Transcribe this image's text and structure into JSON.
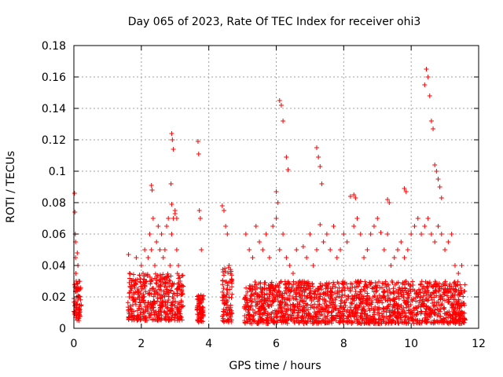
{
  "chart_data": {
    "type": "scatter",
    "title": "Day 065 of 2023, Rate Of TEC Index for receiver ohi3",
    "xlabel": "GPS time / hours",
    "ylabel": "ROTI / TECUs",
    "xlim": [
      0,
      12
    ],
    "ylim": [
      0,
      0.18
    ],
    "xticks": [
      0,
      2,
      4,
      6,
      8,
      10,
      12
    ],
    "yticks": [
      0,
      0.02,
      0.04,
      0.06,
      0.08,
      0.1,
      0.12,
      0.14,
      0.16,
      0.18
    ],
    "xtick_labels": [
      "0",
      "2",
      "4",
      "6",
      "8",
      "10",
      "12"
    ],
    "ytick_labels": [
      "0",
      "0.02",
      "0.04",
      "0.06",
      "0.08",
      "0.1",
      "0.12",
      "0.14",
      "0.16",
      "0.18"
    ],
    "grid": true,
    "marker": "plus",
    "color": "#ff0000",
    "series": [
      {
        "x": [
          0.02,
          0.03,
          0.04,
          0.05,
          0.05,
          0.06,
          0.07,
          0.08,
          0.09,
          0.1,
          0.12,
          0.14,
          0.16,
          0.18,
          0.02,
          0.05,
          0.08,
          0.12,
          0.16,
          1.62,
          1.65,
          1.7,
          1.75,
          1.8,
          1.85,
          1.9,
          1.95,
          2.0,
          2.05,
          2.1,
          2.15,
          2.2,
          2.25,
          2.3,
          2.35,
          2.4,
          2.45,
          2.5,
          2.55,
          2.6,
          2.65,
          2.7,
          2.75,
          2.8,
          2.85,
          2.9,
          2.95,
          3.0,
          3.05,
          3.1,
          3.15,
          2.3,
          2.32,
          2.9,
          2.92,
          2.95,
          3.0,
          3.05,
          2.88,
          2.9,
          3.68,
          3.7,
          3.72,
          3.75,
          3.78,
          3.8,
          3.7,
          3.72,
          3.75,
          4.4,
          4.45,
          4.5,
          4.55,
          4.6,
          4.65,
          4.5,
          4.55,
          4.6,
          5.1,
          5.2,
          5.3,
          5.4,
          5.5,
          5.6,
          5.7,
          5.8,
          5.9,
          6.0,
          6.1,
          6.2,
          6.3,
          6.4,
          6.5,
          6.6,
          6.7,
          6.8,
          6.9,
          7.0,
          7.1,
          7.2,
          7.3,
          7.4,
          7.5,
          7.6,
          7.7,
          7.8,
          7.9,
          8.0,
          8.1,
          8.2,
          8.3,
          8.4,
          8.5,
          8.6,
          8.7,
          8.8,
          8.9,
          9.0,
          9.1,
          9.2,
          9.3,
          9.4,
          9.5,
          9.6,
          9.7,
          9.8,
          9.9,
          10.0,
          10.1,
          10.2,
          10.3,
          10.4,
          10.5,
          10.6,
          10.7,
          10.8,
          10.9,
          11.0,
          11.1,
          11.2,
          11.3,
          11.4,
          11.5,
          6.0,
          6.05,
          6.1,
          6.15,
          6.2,
          6.3,
          6.35,
          7.2,
          7.25,
          7.3,
          7.35,
          8.3,
          8.35,
          9.3,
          9.35,
          9.8,
          9.85,
          10.4,
          10.45,
          10.5,
          10.55,
          10.6,
          10.65,
          10.7,
          10.75,
          10.8,
          10.85,
          10.9
        ],
        "y": [
          0.086,
          0.074,
          0.06,
          0.055,
          0.045,
          0.035,
          0.03,
          0.025,
          0.02,
          0.048,
          0.04,
          0.03,
          0.02,
          0.012,
          0.01,
          0.015,
          0.008,
          0.018,
          0.01,
          0.047,
          0.035,
          0.02,
          0.015,
          0.03,
          0.045,
          0.025,
          0.02,
          0.04,
          0.035,
          0.05,
          0.03,
          0.045,
          0.06,
          0.05,
          0.07,
          0.04,
          0.055,
          0.065,
          0.05,
          0.06,
          0.045,
          0.05,
          0.065,
          0.07,
          0.04,
          0.06,
          0.07,
          0.075,
          0.05,
          0.04,
          0.03,
          0.091,
          0.088,
          0.124,
          0.12,
          0.114,
          0.073,
          0.07,
          0.092,
          0.079,
          0.119,
          0.111,
          0.075,
          0.07,
          0.05,
          0.02,
          0.015,
          0.01,
          0.005,
          0.078,
          0.075,
          0.065,
          0.06,
          0.04,
          0.035,
          0.02,
          0.01,
          0.005,
          0.06,
          0.05,
          0.045,
          0.065,
          0.055,
          0.05,
          0.06,
          0.045,
          0.065,
          0.07,
          0.05,
          0.06,
          0.045,
          0.04,
          0.035,
          0.05,
          0.03,
          0.052,
          0.045,
          0.06,
          0.04,
          0.05,
          0.066,
          0.055,
          0.06,
          0.05,
          0.065,
          0.045,
          0.05,
          0.06,
          0.055,
          0.084,
          0.065,
          0.07,
          0.06,
          0.045,
          0.05,
          0.06,
          0.065,
          0.07,
          0.061,
          0.05,
          0.06,
          0.04,
          0.045,
          0.05,
          0.055,
          0.045,
          0.05,
          0.06,
          0.065,
          0.07,
          0.06,
          0.065,
          0.07,
          0.06,
          0.055,
          0.065,
          0.06,
          0.05,
          0.055,
          0.06,
          0.04,
          0.035,
          0.04,
          0.087,
          0.08,
          0.145,
          0.142,
          0.132,
          0.109,
          0.101,
          0.115,
          0.109,
          0.103,
          0.092,
          0.085,
          0.083,
          0.082,
          0.08,
          0.089,
          0.087,
          0.155,
          0.165,
          0.16,
          0.148,
          0.132,
          0.127,
          0.104,
          0.1,
          0.095,
          0.09,
          0.083
        ]
      }
    ],
    "dense_bands": [
      {
        "x_start": 0.0,
        "x_end": 0.22,
        "y_low": 0.005,
        "y_high": 0.03,
        "count": 60
      },
      {
        "x_start": 1.6,
        "x_end": 3.25,
        "y_low": 0.005,
        "y_high": 0.035,
        "count": 420
      },
      {
        "x_start": 3.65,
        "x_end": 3.85,
        "y_low": 0.004,
        "y_high": 0.022,
        "count": 70
      },
      {
        "x_start": 4.4,
        "x_end": 4.7,
        "y_low": 0.004,
        "y_high": 0.04,
        "count": 90
      },
      {
        "x_start": 5.05,
        "x_end": 11.6,
        "y_low": 0.003,
        "y_high": 0.03,
        "count": 1600
      }
    ]
  }
}
